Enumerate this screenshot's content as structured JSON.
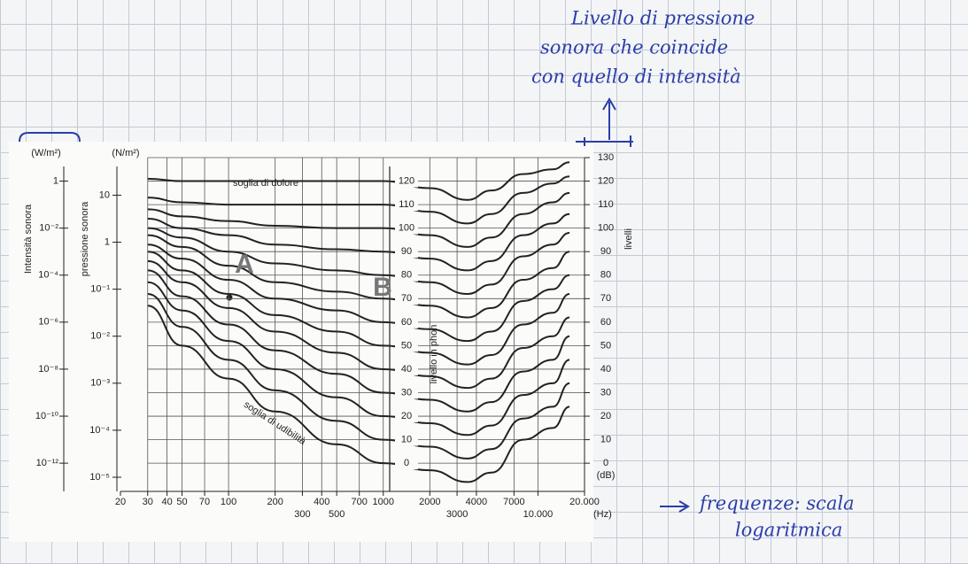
{
  "chart_data": {
    "type": "line",
    "x_unit": "(Hz)",
    "y_unit": "(dB)",
    "ylabel": "livelli",
    "inner_label": "livello in phon",
    "xscale": "log",
    "xlim": [
      20,
      20000
    ],
    "xticks": [
      20,
      30,
      40,
      50,
      70,
      100,
      200,
      300,
      400,
      500,
      700,
      1000,
      2000,
      3000,
      4000,
      7000,
      {
        "value": 10000,
        "label": "10.000"
      },
      {
        "value": 20000,
        "label": "20.000"
      }
    ],
    "ylim": [
      -12,
      130
    ],
    "yticks": [
      0,
      10,
      20,
      30,
      40,
      50,
      60,
      70,
      80,
      90,
      100,
      110,
      120,
      130
    ],
    "intensity_axis": {
      "label": "Intensità sonora",
      "unit": "(W/m²)",
      "scale": "log",
      "lim": [
        6.3e-14,
        10
      ],
      "ticks": [
        1,
        {
          "value": 0.01,
          "label": "10⁻²"
        },
        {
          "value": 0.0001,
          "label": "10⁻⁴"
        },
        {
          "value": 1e-06,
          "label": "10⁻⁶"
        },
        {
          "value": 1e-08,
          "label": "10⁻⁸"
        },
        {
          "value": 1e-10,
          "label": "10⁻¹⁰"
        },
        {
          "value": 1e-12,
          "label": "10⁻¹²"
        }
      ]
    },
    "pressure_axis": {
      "label": "pressione sonora",
      "unit": "(N/m²)",
      "scale": "log",
      "lim": [
        5e-06,
        63
      ],
      "ticks": [
        10,
        1,
        {
          "value": 0.1,
          "label": "10⁻¹"
        },
        {
          "value": 0.01,
          "label": "10⁻²"
        },
        {
          "value": 0.001,
          "label": "10⁻³"
        },
        {
          "value": 0.0001,
          "label": "10⁻⁴"
        },
        {
          "value": 1e-05,
          "label": "10⁻⁵"
        }
      ]
    },
    "grid": true,
    "color": "#222222",
    "x": [
      30,
      50,
      100,
      200,
      500,
      1000,
      2000,
      3500,
      5000,
      8000,
      12500,
      16000
    ],
    "series": [
      {
        "name": "0",
        "values": [
          67,
          50,
          36,
          22,
          8,
          0,
          -3,
          -8,
          -4,
          10,
          15,
          24
        ]
      },
      {
        "name": "10",
        "values": [
          72,
          58,
          44,
          31,
          18,
          10,
          7,
          2,
          6,
          19,
          24,
          34
        ]
      },
      {
        "name": "20",
        "values": [
          77,
          65,
          52,
          40,
          28,
          20,
          17,
          12,
          16,
          29,
          34,
          44
        ]
      },
      {
        "name": "30",
        "values": [
          82,
          71,
          59,
          48,
          38,
          30,
          27,
          22,
          26,
          39,
          44,
          54
        ]
      },
      {
        "name": "40",
        "values": [
          86,
          77,
          66,
          56,
          47,
          40,
          37,
          32,
          36,
          49,
          54,
          62
        ]
      },
      {
        "name": "50",
        "values": [
          90,
          82,
          72,
          63,
          56,
          50,
          47,
          42,
          46,
          59,
          64,
          72
        ]
      },
      {
        "name": "60",
        "values": [
          93,
          87,
          78,
          70,
          65,
          60,
          57,
          52,
          56,
          69,
          74,
          80
        ]
      },
      {
        "name": "70",
        "values": [
          97,
          92,
          84,
          77,
          73,
          70,
          67,
          62,
          66,
          78,
          83,
          90
        ]
      },
      {
        "name": "80",
        "values": [
          100,
          96,
          90,
          85,
          82,
          80,
          77,
          72,
          76,
          88,
          93,
          98
        ]
      },
      {
        "name": "90",
        "values": [
          104,
          100,
          97,
          93,
          91,
          90,
          87,
          82,
          86,
          97,
          102,
          106
        ]
      },
      {
        "name": "100",
        "values": [
          108,
          105,
          103,
          101,
          100,
          100,
          97,
          92,
          96,
          106,
          111,
          115
        ]
      },
      {
        "name": "110",
        "values": [
          113,
          111,
          110,
          110,
          110,
          110,
          107,
          102,
          106,
          115,
          119,
          122
        ]
      },
      {
        "name": "120",
        "values": [
          121,
          120,
          120,
          120,
          120,
          120,
          117,
          112,
          116,
          123,
          125,
          128
        ]
      }
    ],
    "annotations": [
      "soglia di dolore",
      "soglia di udibilità",
      "A",
      "B"
    ]
  },
  "handwriting": {
    "top": [
      "Livello di pressione",
      "sonora che coincide",
      "con quello di intensità"
    ],
    "bottom": [
      "frequenze: scala",
      "logaritmica"
    ]
  }
}
